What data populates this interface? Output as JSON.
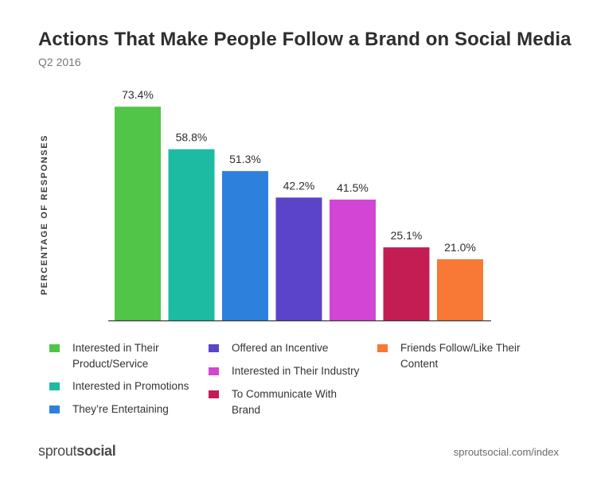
{
  "chart_data": {
    "type": "bar",
    "title": "Actions That Make People Follow a Brand on Social Media",
    "subtitle": "Q2 2016",
    "ylabel": "PERCENTAGE OF RESPONSES",
    "xlabel": "",
    "ylim": [
      0,
      80
    ],
    "grid": false,
    "legend_placement": "bottom",
    "categories": [
      "Interested in Their Product/Service",
      "Interested in Promotions",
      "They’re Entertaining",
      "Offered an Incentive",
      "Interested in Their Industry",
      "To Communicate With Brand",
      "Friends Follow/Like Their Content"
    ],
    "values": [
      73.4,
      58.8,
      51.3,
      42.2,
      41.5,
      25.1,
      21.0
    ],
    "value_labels": [
      "73.4%",
      "58.8%",
      "51.3%",
      "42.2%",
      "41.5%",
      "25.1%",
      "21.0%"
    ],
    "colors": [
      "#51c547",
      "#1ebba3",
      "#2d80dc",
      "#5b44c9",
      "#d245d5",
      "#c41d53",
      "#f87835"
    ]
  },
  "legend": [
    {
      "line1": "Interested in Their",
      "line2": "Product/Service",
      "color": "#51c547"
    },
    {
      "line1": "Interested in Promotions",
      "line2": "",
      "color": "#1ebba3"
    },
    {
      "line1": "They’re Entertaining",
      "line2": "",
      "color": "#2d80dc"
    },
    {
      "line1": "Offered an Incentive",
      "line2": "",
      "color": "#5b44c9"
    },
    {
      "line1": "Interested in Their Industry",
      "line2": "",
      "color": "#d245d5"
    },
    {
      "line1": "To Communicate With",
      "line2": "Brand",
      "color": "#c41d53"
    },
    {
      "line1": "Friends Follow/Like Their",
      "line2": "Content",
      "color": "#f87835"
    }
  ],
  "footer": {
    "logo_part1": "sprout",
    "logo_part2": "social",
    "source": "sproutsocial.com/index"
  }
}
